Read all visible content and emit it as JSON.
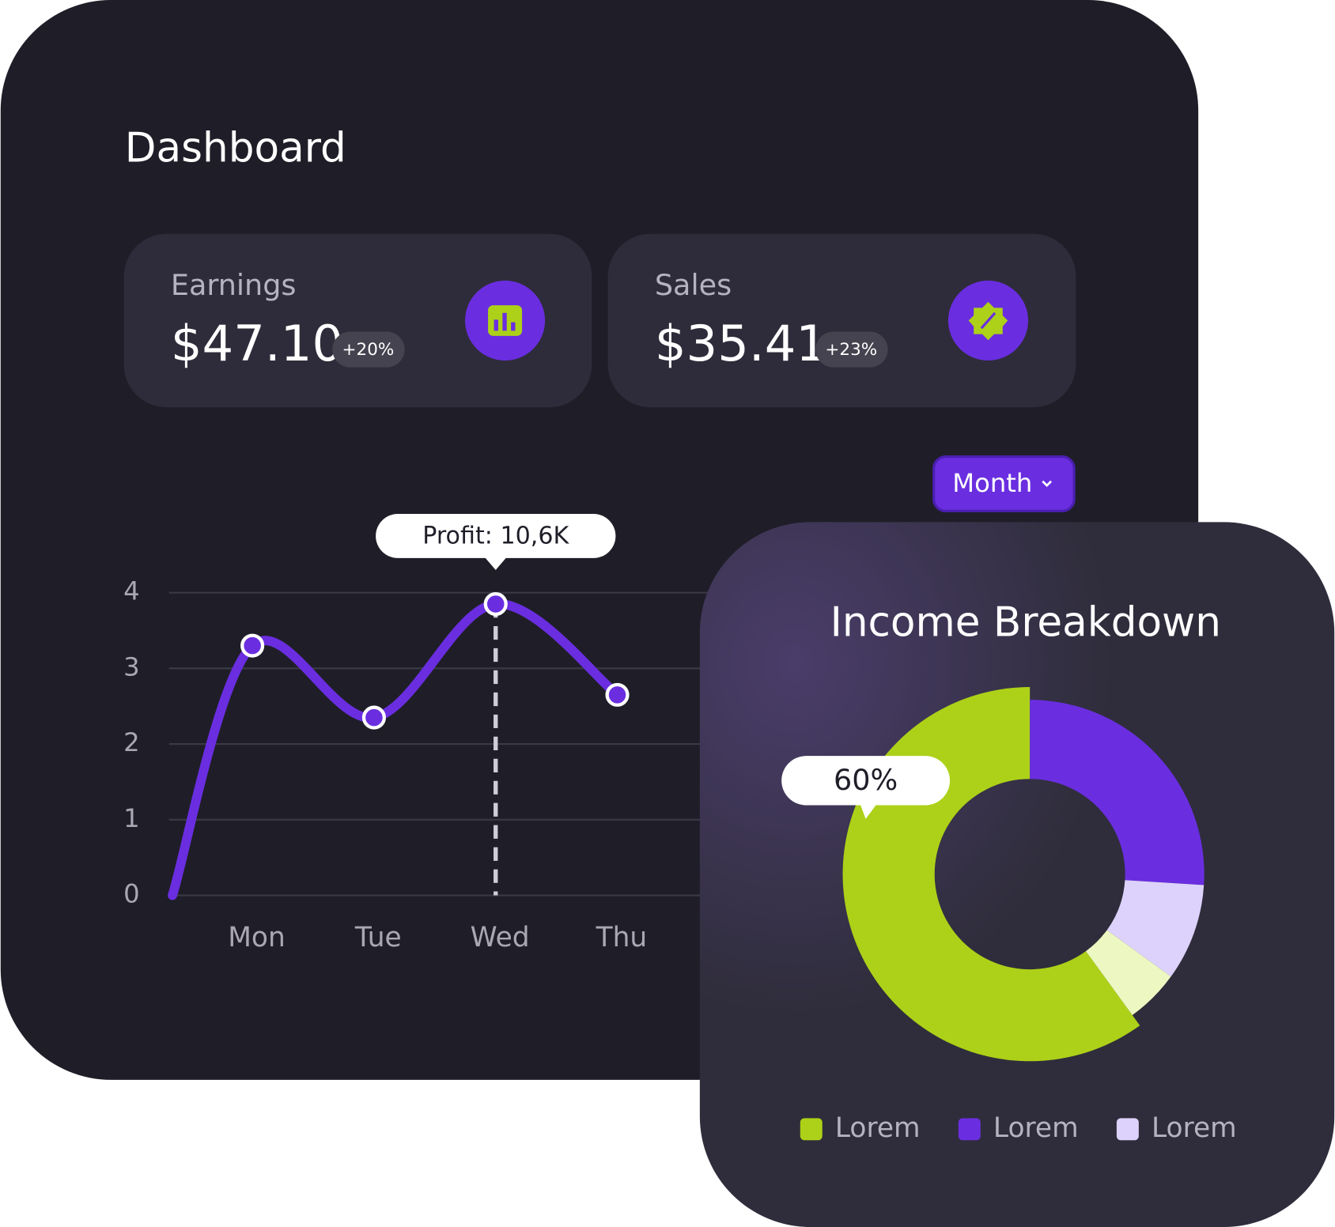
{
  "header": {
    "title": "Dashboard"
  },
  "cards": [
    {
      "label": "Earnings",
      "value": "$47.10",
      "change": "+20%"
    },
    {
      "label": "Sales",
      "value": "$35.41",
      "change": "+23%"
    }
  ],
  "filter": {
    "button": "Month"
  },
  "chart_data": [
    {
      "type": "line",
      "categories": [
        null,
        "Mon",
        "Tue",
        "Wed",
        "Thu"
      ],
      "values": [
        0,
        3.3,
        2.35,
        3.85,
        2.65
      ],
      "color": "#6a2ee0",
      "ylim": [
        0,
        4
      ],
      "yticks": [
        0,
        1,
        2,
        3,
        4
      ],
      "grid": true,
      "annotation": "Profit: 10,6K"
    },
    {
      "type": "pie",
      "title": "Income Breakdown",
      "labels": [
        "Lorem",
        "Lorem",
        "Lorem",
        null
      ],
      "values": [
        60,
        26,
        9,
        5
      ],
      "value_labels": [
        "60%",
        null,
        null,
        null
      ],
      "colors": [
        "#add118",
        "#6a2ee0",
        "#ddd2fb",
        "#edf7c2"
      ]
    }
  ]
}
